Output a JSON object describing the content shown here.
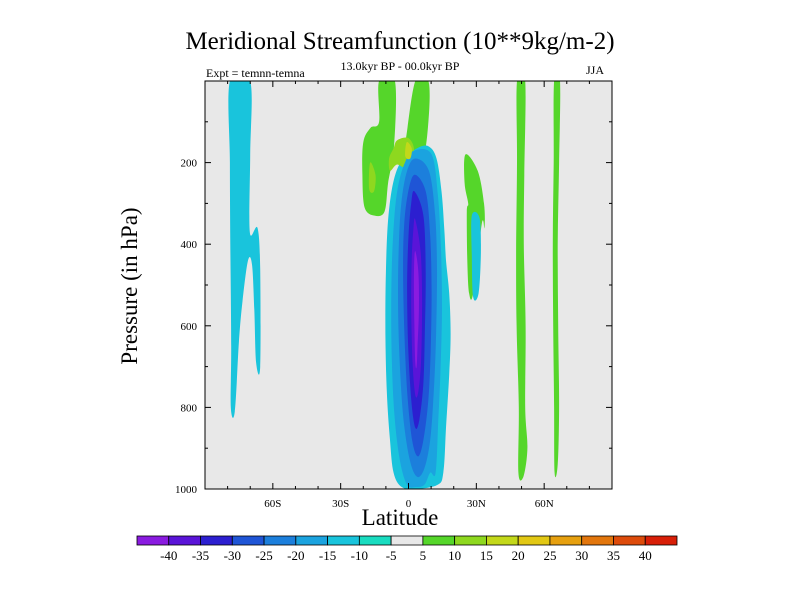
{
  "chart_data": {
    "type": "heatmap",
    "title": "Meridional Streamfunction (10**9kg/m-2)",
    "subtitle": "13.0kyr BP - 00.0kyr BP",
    "experiment": "Expt = temnn-temna",
    "season": "JJA",
    "xlabel": "Latitude",
    "ylabel": "Pressure (in hPa)",
    "xlim": [
      -90,
      90
    ],
    "ylim": [
      1000,
      0
    ],
    "x_ticks": [
      {
        "value": -60,
        "label": "60S"
      },
      {
        "value": -30,
        "label": "30S"
      },
      {
        "value": 0,
        "label": "0"
      },
      {
        "value": 30,
        "label": "30N"
      },
      {
        "value": 60,
        "label": "60N"
      }
    ],
    "y_ticks": [
      {
        "value": 200,
        "label": "200"
      },
      {
        "value": 400,
        "label": "400"
      },
      {
        "value": 600,
        "label": "600"
      },
      {
        "value": 800,
        "label": "800"
      },
      {
        "value": 1000,
        "label": "1000"
      }
    ],
    "colorbar": {
      "labels": [
        "-40",
        "-35",
        "-30",
        "-25",
        "-20",
        "-15",
        "-10",
        "-5",
        "5",
        "10",
        "15",
        "20",
        "25",
        "30",
        "35",
        "40"
      ],
      "colors": [
        "#8a1be0",
        "#5a14d8",
        "#2c1fd0",
        "#1f55d6",
        "#1c7fdc",
        "#1ba3df",
        "#19c4dc",
        "#19dcc0",
        "#e8e8e8",
        "#55d62a",
        "#8ed81f",
        "#c3d81a",
        "#e2c814",
        "#e6a00f",
        "#e2760d",
        "#dd4b0b",
        "#d81f08"
      ],
      "zero_band_color": "#e8e8e8"
    },
    "contours": [
      {
        "name": "tropical-core",
        "level": "-40",
        "points": [
          [
            3.2,
            420
          ],
          [
            4.4,
            470
          ],
          [
            4.6,
            560
          ],
          [
            4.0,
            650
          ],
          [
            3.6,
            700
          ],
          [
            3.0,
            690
          ],
          [
            2.6,
            600
          ],
          [
            2.4,
            500
          ],
          [
            2.6,
            430
          ]
        ]
      },
      {
        "name": "tropical-cell",
        "level": "-35",
        "points": [
          [
            3.0,
            340
          ],
          [
            5.4,
            420
          ],
          [
            6.0,
            540
          ],
          [
            5.6,
            680
          ],
          [
            4.4,
            760
          ],
          [
            3.0,
            770
          ],
          [
            1.8,
            690
          ],
          [
            1.2,
            560
          ],
          [
            1.4,
            440
          ],
          [
            2.2,
            360
          ]
        ]
      },
      {
        "name": "tropical-cell",
        "level": "-30",
        "points": [
          [
            2.6,
            270
          ],
          [
            6.6,
            330
          ],
          [
            7.6,
            470
          ],
          [
            7.2,
            620
          ],
          [
            6.6,
            740
          ],
          [
            4.8,
            830
          ],
          [
            3.0,
            850
          ],
          [
            1.2,
            780
          ],
          [
            -0.2,
            640
          ],
          [
            -0.6,
            500
          ],
          [
            0.0,
            380
          ],
          [
            1.2,
            300
          ]
        ]
      },
      {
        "name": "tropical-cell",
        "level": "-25",
        "points": [
          [
            2.6,
            230
          ],
          [
            7.6,
            270
          ],
          [
            9.6,
            380
          ],
          [
            10.2,
            520
          ],
          [
            9.8,
            660
          ],
          [
            8.8,
            780
          ],
          [
            6.6,
            880
          ],
          [
            4.2,
            920
          ],
          [
            1.6,
            880
          ],
          [
            -0.6,
            760
          ],
          [
            -1.8,
            620
          ],
          [
            -2.4,
            470
          ],
          [
            -2.0,
            360
          ],
          [
            -0.4,
            280
          ]
        ]
      },
      {
        "name": "tropical-cell",
        "level": "-20",
        "points": [
          [
            3.0,
            190
          ],
          [
            9.0,
            220
          ],
          [
            11.8,
            330
          ],
          [
            12.6,
            460
          ],
          [
            12.2,
            620
          ],
          [
            11.2,
            760
          ],
          [
            9.6,
            880
          ],
          [
            7.0,
            950
          ],
          [
            3.8,
            970
          ],
          [
            0.6,
            930
          ],
          [
            -2.2,
            830
          ],
          [
            -3.8,
            700
          ],
          [
            -4.6,
            560
          ],
          [
            -4.4,
            420
          ],
          [
            -3.2,
            300
          ],
          [
            -0.6,
            220
          ]
        ]
      },
      {
        "name": "tropical-cell",
        "level": "-15",
        "points": [
          [
            2.8,
            170
          ],
          [
            10.2,
            180
          ],
          [
            13.0,
            280
          ],
          [
            14.4,
            420
          ],
          [
            14.8,
            560
          ],
          [
            14.2,
            700
          ],
          [
            13.2,
            830
          ],
          [
            12.0,
            960
          ],
          [
            9.6,
            960
          ],
          [
            7.0,
            990
          ],
          [
            3.2,
            995
          ],
          [
            -0.6,
            990
          ],
          [
            -3.8,
            930
          ],
          [
            -6.2,
            820
          ],
          [
            -7.4,
            680
          ],
          [
            -7.6,
            520
          ],
          [
            -6.8,
            380
          ],
          [
            -5.0,
            270
          ],
          [
            -1.6,
            200
          ]
        ]
      },
      {
        "name": "tropical-cell",
        "level": "-10",
        "points": [
          [
            3.8,
            165
          ],
          [
            8.8,
            160
          ],
          [
            12.4,
            190
          ],
          [
            14.6,
            270
          ],
          [
            15.8,
            360
          ],
          [
            16.6,
            440
          ],
          [
            18.0,
            520
          ],
          [
            18.6,
            620
          ],
          [
            18.0,
            720
          ],
          [
            16.6,
            850
          ],
          [
            15.4,
            960
          ],
          [
            12.8,
            990
          ],
          [
            3.4,
            1000
          ],
          [
            -3.0,
            995
          ],
          [
            -6.6,
            960
          ],
          [
            -8.2,
            880
          ],
          [
            -9.6,
            760
          ],
          [
            -10.2,
            620
          ],
          [
            -10.0,
            470
          ],
          [
            -9.0,
            340
          ],
          [
            -6.8,
            250
          ],
          [
            -3.0,
            195
          ]
        ]
      },
      {
        "name": "nh-cell-arm",
        "level": "-10",
        "points": [
          [
            28.0,
            330
          ],
          [
            31.4,
            335
          ],
          [
            32.0,
            420
          ],
          [
            31.0,
            520
          ],
          [
            28.6,
            530
          ],
          [
            28.0,
            430
          ]
        ]
      },
      {
        "name": "sh-polar-band",
        "level": "-10",
        "points": [
          [
            -79.0,
            0
          ],
          [
            -70.0,
            0
          ],
          [
            -70.0,
            180
          ],
          [
            -70.2,
            370
          ],
          [
            -66.8,
            360
          ],
          [
            -65.6,
            460
          ],
          [
            -65.6,
            700
          ],
          [
            -67.4,
            690
          ],
          [
            -68.2,
            560
          ],
          [
            -69.2,
            450
          ],
          [
            -71.0,
            440
          ],
          [
            -73.4,
            540
          ],
          [
            -75.0,
            640
          ],
          [
            -76.8,
            810
          ],
          [
            -78.6,
            800
          ],
          [
            -78.4,
            650
          ],
          [
            -78.8,
            400
          ],
          [
            -79.0,
            200
          ]
        ]
      },
      {
        "name": "nh-upper-positive",
        "level": "5",
        "points": [
          [
            -13.0,
            0
          ],
          [
            -6.0,
            0
          ],
          [
            -6.4,
            160
          ],
          [
            -9.0,
            250
          ],
          [
            -10.6,
            320
          ],
          [
            -15.0,
            330
          ],
          [
            -19.4,
            310
          ],
          [
            -20.4,
            230
          ],
          [
            -20.0,
            150
          ],
          [
            -16.8,
            115
          ],
          [
            -13.0,
            100
          ]
        ]
      },
      {
        "name": "nh-upper-positive",
        "level": "5",
        "points": [
          [
            3.0,
            0
          ],
          [
            8.8,
            0
          ],
          [
            8.8,
            100
          ],
          [
            6.0,
            200
          ],
          [
            -1.4,
            250
          ],
          [
            -3.2,
            180
          ],
          [
            -1.4,
            150
          ]
        ]
      },
      {
        "name": "nh-upper-positive",
        "level": "10",
        "points": [
          [
            -5.0,
            145
          ],
          [
            0.0,
            140
          ],
          [
            2.4,
            170
          ],
          [
            -1.2,
            210
          ],
          [
            -5.2,
            205
          ],
          [
            -8.2,
            220
          ],
          [
            -8.6,
            190
          ],
          [
            -6.6,
            165
          ]
        ]
      },
      {
        "name": "nh-upper-positive",
        "level": "10",
        "points": [
          [
            -17.0,
            200
          ],
          [
            -14.6,
            230
          ],
          [
            -15.2,
            270
          ],
          [
            -17.4,
            265
          ]
        ]
      },
      {
        "name": "nh-upper-positive",
        "level": "15",
        "points": [
          [
            -0.8,
            150
          ],
          [
            1.4,
            165
          ],
          [
            0.8,
            190
          ],
          [
            -1.4,
            185
          ]
        ]
      },
      {
        "name": "nh-lower-positive",
        "level": "5",
        "points": [
          [
            25.2,
            180
          ],
          [
            30.6,
            220
          ],
          [
            33.4,
            300
          ],
          [
            33.6,
            360
          ],
          [
            32.4,
            350
          ],
          [
            28.6,
            520
          ],
          [
            26.8,
            520
          ],
          [
            26.0,
            440
          ],
          [
            25.8,
            320
          ],
          [
            26.4,
            300
          ],
          [
            24.8,
            250
          ]
        ]
      },
      {
        "name": "nh-mid-band",
        "level": "5",
        "points": [
          [
            48.0,
            0
          ],
          [
            51.6,
            0
          ],
          [
            51.2,
            230
          ],
          [
            51.0,
            400
          ],
          [
            51.8,
            600
          ],
          [
            51.6,
            800
          ],
          [
            52.6,
            900
          ],
          [
            50.8,
            970
          ],
          [
            48.6,
            960
          ],
          [
            48.8,
            800
          ],
          [
            47.8,
            600
          ],
          [
            47.6,
            420
          ],
          [
            48.0,
            200
          ]
        ]
      },
      {
        "name": "nh-polar-band",
        "level": "5",
        "points": [
          [
            64.4,
            0
          ],
          [
            67.0,
            0
          ],
          [
            66.6,
            200
          ],
          [
            66.0,
            400
          ],
          [
            66.2,
            600
          ],
          [
            66.6,
            800
          ],
          [
            66.0,
            940
          ],
          [
            64.6,
            960
          ],
          [
            64.4,
            800
          ],
          [
            64.0,
            600
          ],
          [
            63.8,
            400
          ],
          [
            64.2,
            200
          ]
        ]
      }
    ]
  }
}
